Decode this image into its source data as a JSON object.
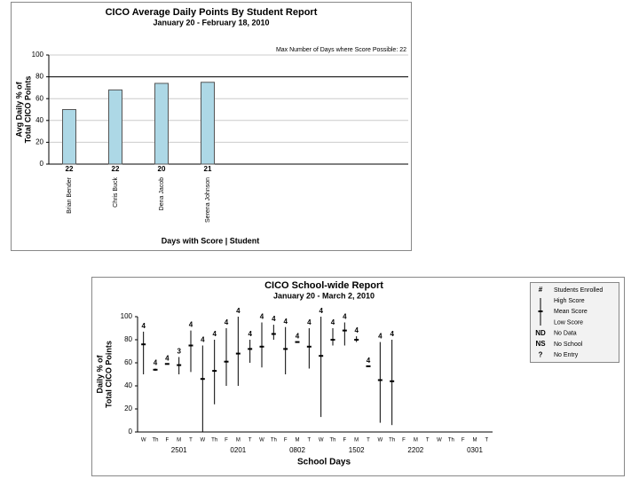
{
  "chart_data": [
    {
      "type": "bar",
      "title": "CICO Average Daily Points By Student Report",
      "subtitle": "January 20 - February 18, 2010",
      "annotation": "Max Number of Days where Score Possible: 22",
      "y_label": [
        "Avg Daily % of",
        "Total CICO Points"
      ],
      "x_label": "Days with Score | Student",
      "categories": [
        "Brian Bender",
        "Chris Buck",
        "Dena Jacob",
        "Serena Johnson"
      ],
      "values": [
        50,
        68,
        74,
        75
      ],
      "days_with_score": [
        22,
        22,
        20,
        21
      ],
      "reference_line": 80,
      "color": "#add8e6",
      "ylim": [
        0,
        100
      ],
      "yticks": [
        0,
        20,
        40,
        60,
        80,
        100
      ],
      "grid": true
    },
    {
      "type": "high-low",
      "title": "CICO School-wide Report",
      "subtitle": "January 20 - March 2, 2010",
      "y_label": [
        "Daily % of",
        "Total CICO Points"
      ],
      "x_label": "School Days",
      "categories": [
        "W",
        "Th",
        "F",
        "M",
        "T",
        "W",
        "Th",
        "F",
        "M",
        "T",
        "W",
        "Th",
        "F",
        "M",
        "T",
        "W",
        "Th",
        "F",
        "M",
        "T",
        "W",
        "Th",
        "F",
        "M",
        "T",
        "W",
        "Th",
        "F",
        "M",
        "T"
      ],
      "week_labels": [
        "2501",
        "0201",
        "0802",
        "1502",
        "2202",
        "0301"
      ],
      "high": [
        87,
        55,
        59,
        65,
        88,
        75,
        80,
        90,
        100,
        80,
        95,
        93,
        91,
        78,
        90,
        100,
        90,
        95,
        83,
        57,
        78,
        80,
        null,
        null,
        null,
        null,
        null,
        null,
        null,
        null
      ],
      "mean": [
        76,
        54,
        59,
        58,
        75,
        46,
        53,
        61,
        68,
        72,
        74,
        85,
        72,
        78,
        74,
        66,
        80,
        88,
        80,
        57,
        45,
        44,
        null,
        null,
        null,
        null,
        null,
        null,
        null,
        null
      ],
      "low": [
        50,
        53,
        59,
        50,
        52,
        0,
        24,
        40,
        40,
        60,
        56,
        80,
        50,
        78,
        55,
        13,
        75,
        75,
        78,
        57,
        8,
        6,
        null,
        null,
        null,
        null,
        null,
        null,
        null,
        null
      ],
      "students": [
        4,
        4,
        4,
        3,
        4,
        4,
        4,
        4,
        4,
        4,
        4,
        4,
        4,
        4,
        4,
        4,
        4,
        4,
        4,
        4,
        4,
        4,
        null,
        null,
        null,
        null,
        null,
        null,
        null,
        null
      ],
      "legend": [
        {
          "symbol": "#",
          "label": "Students Enrolled"
        },
        {
          "label": "High Score"
        },
        {
          "label": "Mean Score"
        },
        {
          "label": "Low Score"
        },
        {
          "symbol": "ND",
          "label": "No Data"
        },
        {
          "symbol": "NS",
          "label": "No School"
        },
        {
          "symbol": "?",
          "label": "No Entry"
        }
      ],
      "color": "#000000",
      "ylim": [
        0,
        100
      ],
      "yticks": [
        0,
        20,
        40,
        60,
        80,
        100
      ]
    }
  ]
}
